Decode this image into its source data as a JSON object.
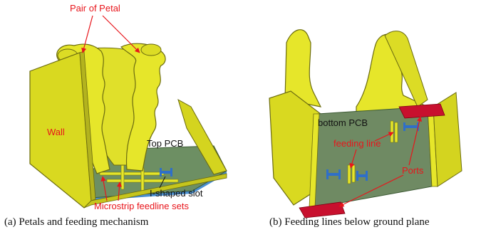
{
  "figure_a": {
    "labels": {
      "pair_of_petal": "Pair of Petal",
      "wall": "Wall",
      "top_pcb": "Top PCB",
      "i_shaped_slot": "I-shaped slot",
      "microstrip_feedline_sets": "Microstrip feedline sets"
    },
    "caption": "(a)  Petals and feeding mechanism"
  },
  "figure_b": {
    "labels": {
      "bottom_pcb": "bottom PCB",
      "feeding_line": "feeding line",
      "ports": "Ports"
    },
    "caption": "(b)  Feeding lines below ground plane"
  },
  "colors": {
    "metal_yellow": "#e6e62a",
    "metal_shade": "#b3b31e",
    "pcb_green": "#6d8f63",
    "substrate_blue": "#4a8fd0",
    "port_red": "#c8102e",
    "label_red": "#e8151b"
  }
}
